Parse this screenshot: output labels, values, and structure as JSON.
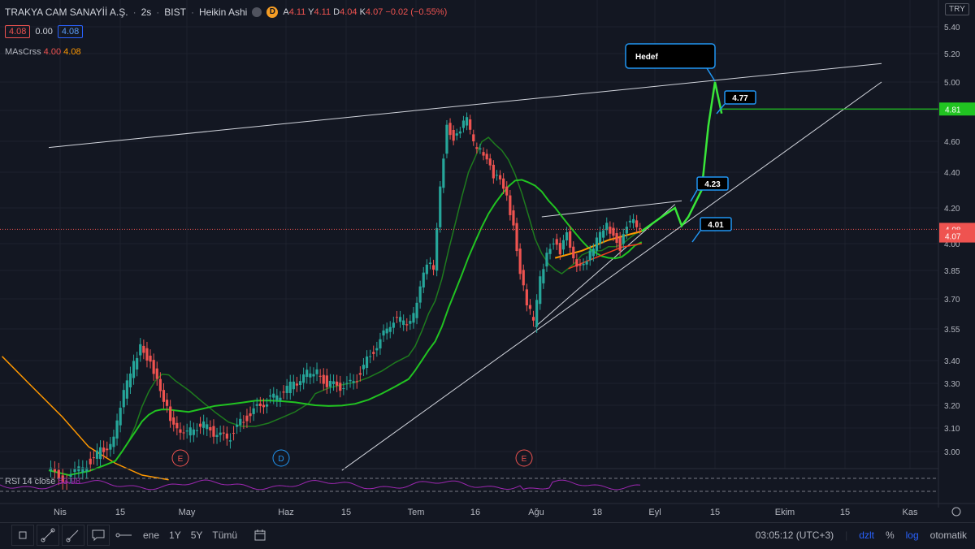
{
  "header": {
    "symbol": "TRAKYA CAM SANAYİİ A.Ş.",
    "interval": "2s",
    "exchange": "BIST",
    "chart_style": "Heikin Ashi",
    "flag": "D",
    "ohlc": {
      "open_label": "A",
      "open": "4.11",
      "high_label": "Y",
      "high": "4.11",
      "low_label": "D",
      "low": "4.04",
      "close_label": "K",
      "close": "4.07",
      "change": "−0.02 (−0.55%)"
    },
    "sell": "4.08",
    "spread": "0.00",
    "buy": "4.08"
  },
  "indicators": {
    "ma": {
      "name": "MAsCrss",
      "val1": "4.00",
      "val2": "4.08"
    },
    "rsi": {
      "name": "RSI 14 close",
      "value": "53.98"
    }
  },
  "currency": "TRY",
  "colors": {
    "up": "#26a69a",
    "down": "#ef5350",
    "bg": "#131722",
    "ma_fast": "#1e7b1e",
    "ma_mid": "#21c321",
    "ma_slow": "#ff9800",
    "ma_short": "#f5401d",
    "rsi": "#9c27b0",
    "projection": "#39e639",
    "annot_border": "#2196f3"
  },
  "chart_data": {
    "type": "candlestick",
    "y_ticks": [
      "5.40",
      "5.20",
      "5.00",
      "4.80",
      "4.60",
      "4.40",
      "4.20",
      "4.00",
      "3.85",
      "3.70",
      "3.55",
      "3.40",
      "3.30",
      "3.20",
      "3.10",
      "3.00"
    ],
    "x_ticks": [
      "Nis",
      "15",
      "May",
      "Haz",
      "15",
      "Tem",
      "16",
      "Ağu",
      "18",
      "Eyl",
      "15",
      "Ekim",
      "15",
      "Kas"
    ],
    "price_labels": [
      {
        "value": "4.81",
        "color": "#21c321"
      },
      {
        "value": "4.08",
        "color": "#ef5350"
      },
      {
        "value": "4.07",
        "color": "#ef5350"
      }
    ],
    "annotations": [
      {
        "text": "Hedef",
        "kind": "callout"
      },
      {
        "text": "4.77",
        "kind": "label"
      },
      {
        "text": "4.23",
        "kind": "label"
      },
      {
        "text": "4.01",
        "kind": "label"
      }
    ],
    "events": [
      {
        "label": "E"
      },
      {
        "label": "D"
      },
      {
        "label": "E"
      }
    ],
    "price_path": [
      [
        0,
        2.92
      ],
      [
        3,
        2.88
      ],
      [
        6,
        2.95
      ],
      [
        8,
        3.0
      ],
      [
        10,
        3.05
      ],
      [
        11,
        3.2
      ],
      [
        12,
        3.3
      ],
      [
        13,
        3.38
      ],
      [
        14,
        3.48
      ],
      [
        15,
        3.42
      ],
      [
        16,
        3.35
      ],
      [
        17,
        3.25
      ],
      [
        18,
        3.18
      ],
      [
        19,
        3.12
      ],
      [
        21,
        3.08
      ],
      [
        23,
        3.12
      ],
      [
        25,
        3.08
      ],
      [
        27,
        3.05
      ],
      [
        29,
        3.12
      ],
      [
        31,
        3.18
      ],
      [
        33,
        3.22
      ],
      [
        35,
        3.25
      ],
      [
        37,
        3.3
      ],
      [
        39,
        3.34
      ],
      [
        40,
        3.36
      ],
      [
        42,
        3.3
      ],
      [
        44,
        3.28
      ],
      [
        46,
        3.3
      ],
      [
        48,
        3.4
      ],
      [
        50,
        3.5
      ],
      [
        52,
        3.6
      ],
      [
        54,
        3.58
      ],
      [
        55,
        3.62
      ],
      [
        56,
        3.78
      ],
      [
        57,
        3.9
      ],
      [
        58,
        3.85
      ],
      [
        59,
        4.3
      ],
      [
        60,
        4.7
      ],
      [
        61,
        4.62
      ],
      [
        62,
        4.68
      ],
      [
        63,
        4.75
      ],
      [
        64,
        4.58
      ],
      [
        65,
        4.55
      ],
      [
        66,
        4.5
      ],
      [
        67,
        4.38
      ],
      [
        68,
        4.35
      ],
      [
        69,
        4.25
      ],
      [
        70,
        4.1
      ],
      [
        71,
        3.85
      ],
      [
        72,
        3.68
      ],
      [
        73,
        3.58
      ],
      [
        74,
        3.8
      ],
      [
        75,
        3.95
      ],
      [
        76,
        4.02
      ],
      [
        77,
        3.95
      ],
      [
        78,
        4.05
      ],
      [
        79,
        3.9
      ],
      [
        80,
        3.88
      ],
      [
        81,
        3.92
      ],
      [
        82,
        3.98
      ],
      [
        83,
        4.05
      ],
      [
        84,
        4.1
      ],
      [
        85,
        4.05
      ],
      [
        86,
        3.98
      ],
      [
        87,
        4.1
      ],
      [
        88,
        4.12
      ],
      [
        89,
        4.07
      ]
    ],
    "trendlines": [
      {
        "name": "upper-channel",
        "from": [
          0,
          4.56
        ],
        "to": [
          125,
          5.13
        ]
      },
      {
        "name": "lower-channel",
        "from": [
          44,
          2.92
        ],
        "to": [
          125,
          5.0
        ]
      },
      {
        "name": "wedge-top",
        "from": [
          74,
          4.15
        ],
        "to": [
          95,
          4.24
        ]
      },
      {
        "name": "wedge-bottom",
        "from": [
          73,
          3.56
        ],
        "to": [
          94,
          4.22
        ]
      }
    ],
    "target_line": {
      "value": 4.81
    },
    "current_price_line": {
      "value": 4.08
    },
    "rsi": {
      "upper": 70,
      "lower": 30,
      "value": 53.98
    }
  },
  "bottom_toolbar": {
    "ranges": [
      "ene",
      "1Y",
      "5Y",
      "Tümü"
    ],
    "time": "03:05:12 (UTC+3)",
    "adjust": "dzlt",
    "percent": "%",
    "log": "log",
    "auto": "otomatik"
  }
}
